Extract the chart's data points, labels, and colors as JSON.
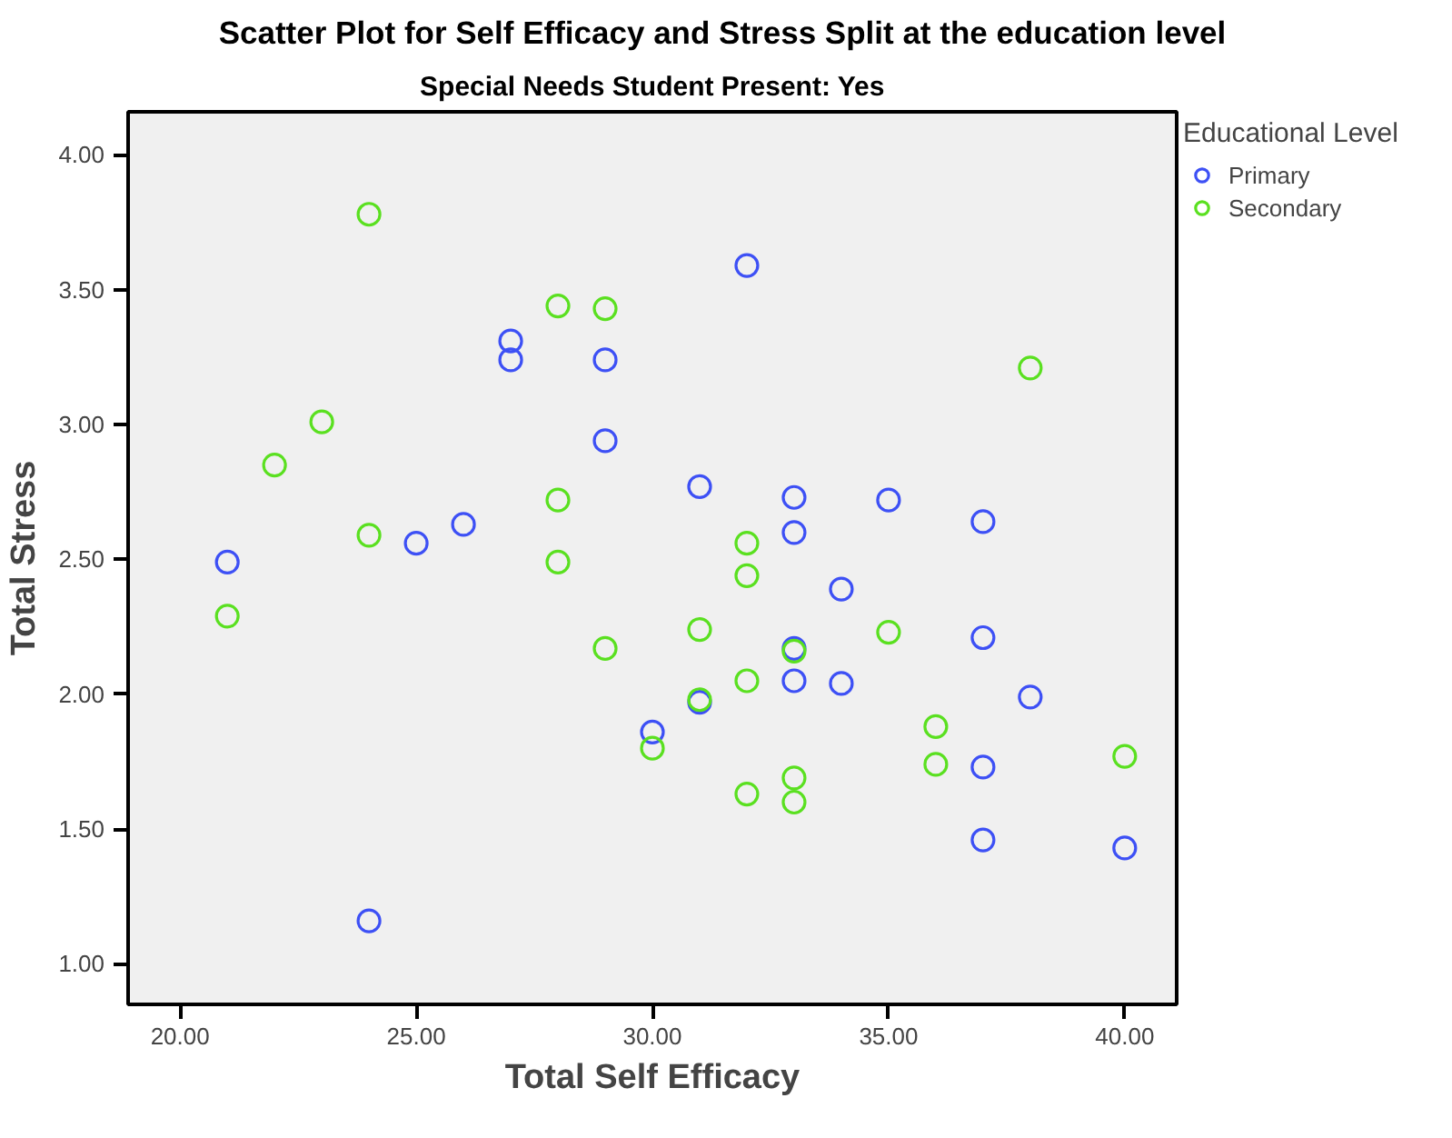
{
  "chart_data": {
    "type": "scatter",
    "title": "Scatter Plot for Self Efficacy and Stress Split at the education level",
    "subtitle": "Special Needs Student Present: Yes",
    "xlabel": "Total Self Efficacy",
    "ylabel": "Total Stress",
    "legend_title": "Educational Level",
    "xlim": [
      18.9,
      41.1
    ],
    "ylim": [
      0.85,
      4.16
    ],
    "xticks": [
      {
        "value": 20,
        "label": "20.00"
      },
      {
        "value": 25,
        "label": "25.00"
      },
      {
        "value": 30,
        "label": "30.00"
      },
      {
        "value": 35,
        "label": "35.00"
      },
      {
        "value": 40,
        "label": "40.00"
      }
    ],
    "yticks": [
      {
        "value": 1,
        "label": "1.00"
      },
      {
        "value": 1.5,
        "label": "1.50"
      },
      {
        "value": 2,
        "label": "2.00"
      },
      {
        "value": 2.5,
        "label": "2.50"
      },
      {
        "value": 3,
        "label": "3.00"
      },
      {
        "value": 3.5,
        "label": "3.50"
      },
      {
        "value": 4,
        "label": "4.00"
      }
    ],
    "grid": false,
    "legend": "right",
    "marker": "circle",
    "series": [
      {
        "name": "Primary",
        "color": "#3d50f5",
        "x": [
          27,
          27,
          29,
          29,
          25,
          26,
          21,
          24,
          30,
          32,
          31,
          33,
          35,
          37,
          33,
          34,
          37,
          33,
          33,
          34,
          31,
          38,
          37,
          37,
          40
        ],
        "values": [
          3.31,
          3.24,
          3.24,
          2.94,
          2.56,
          2.63,
          2.49,
          1.16,
          1.86,
          3.59,
          2.77,
          2.73,
          2.72,
          2.64,
          2.6,
          2.39,
          2.21,
          2.17,
          2.05,
          2.04,
          1.97,
          1.99,
          1.73,
          1.46,
          1.43
        ]
      },
      {
        "name": "Secondary",
        "color": "#5ae020",
        "x": [
          24,
          28,
          29,
          23,
          22,
          28,
          24,
          28,
          21,
          29,
          30,
          38,
          32,
          32,
          31,
          35,
          33,
          32,
          31,
          36,
          36,
          40,
          33,
          32,
          33
        ],
        "values": [
          3.78,
          3.44,
          3.43,
          3.01,
          2.85,
          2.72,
          2.59,
          2.49,
          2.29,
          2.17,
          1.8,
          3.21,
          2.56,
          2.44,
          2.24,
          2.23,
          2.16,
          2.05,
          1.98,
          1.88,
          1.74,
          1.77,
          1.69,
          1.63,
          1.6
        ]
      }
    ]
  }
}
